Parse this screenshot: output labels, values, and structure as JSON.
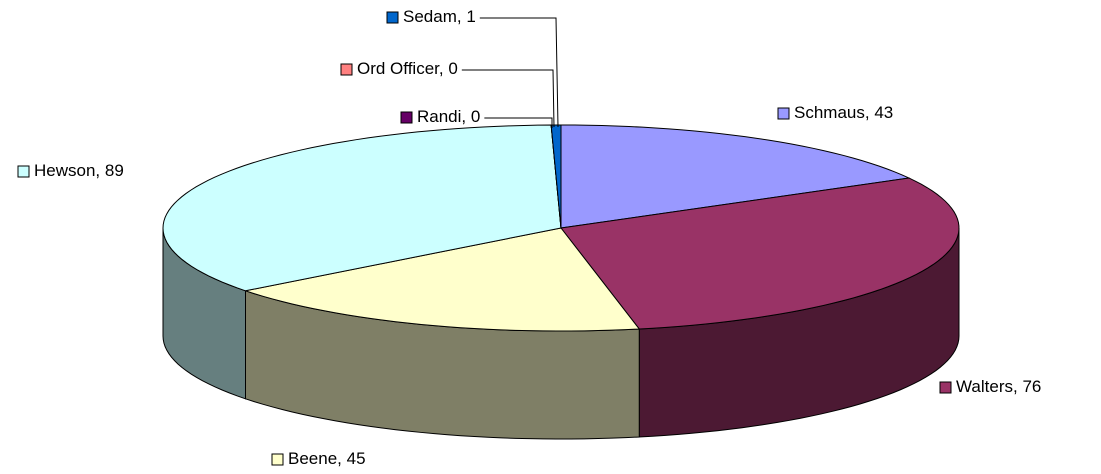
{
  "chart_data": {
    "type": "pie3d",
    "categories": [
      "Schmaus",
      "Walters",
      "Beene",
      "Hewson",
      "Randi",
      "Ord Officer",
      "Sedam"
    ],
    "values": [
      43,
      76,
      45,
      89,
      0,
      0,
      1
    ],
    "colors": [
      "#9999ff",
      "#993366",
      "#ffffcc",
      "#ccffff",
      "#660066",
      "#ff8080",
      "#0066cc"
    ]
  }
}
